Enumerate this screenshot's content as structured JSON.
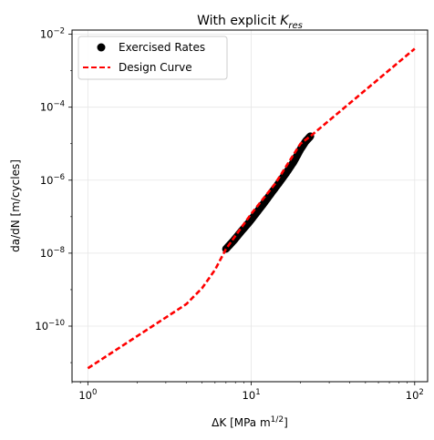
{
  "chart_data": {
    "type": "scatter",
    "title": "With explicit K_res",
    "title_parts": {
      "main": "With explicit ",
      "symbol": "K",
      "subscript": "res"
    },
    "xlabel": "ΔK [MPa m^1/2]",
    "xlabel_parts": {
      "main": "ΔK [MPa m",
      "sup": "1/2",
      "end": "]"
    },
    "ylabel": "da/dN [m/cycles]",
    "xscale": "log",
    "yscale": "log",
    "xlim": [
      0.8,
      120
    ],
    "ylim": [
      3e-12,
      0.013
    ],
    "grid": true,
    "legend_position": "top-left",
    "x_ticks": [
      {
        "base": "10",
        "exp": "0",
        "value": 1
      },
      {
        "base": "10",
        "exp": "1",
        "value": 10
      },
      {
        "base": "10",
        "exp": "2",
        "value": 100
      }
    ],
    "y_ticks": [
      {
        "base": "10",
        "exp": "−10",
        "value": 1e-10
      },
      {
        "base": "10",
        "exp": "−8",
        "value": 1e-08
      },
      {
        "base": "10",
        "exp": "−6",
        "value": 1e-06
      },
      {
        "base": "10",
        "exp": "−4",
        "value": 0.0001
      },
      {
        "base": "10",
        "exp": "−2",
        "value": 0.01
      }
    ],
    "series": [
      {
        "name": "Exercised Rates",
        "kind": "scatter",
        "color": "#000000",
        "x_range": [
          7.0,
          23.0
        ],
        "points": [
          [
            7.0,
            1.3e-08
          ],
          [
            7.8,
            2.2e-08
          ],
          [
            8.7,
            4e-08
          ],
          [
            9.7,
            7e-08
          ],
          [
            10.8,
            1.3e-07
          ],
          [
            12,
            2.4e-07
          ],
          [
            13.3,
            4.5e-07
          ],
          [
            14.8,
            8.5e-07
          ],
          [
            16.4,
            1.6e-06
          ],
          [
            18.2,
            3.2e-06
          ],
          [
            20.0,
            7e-06
          ],
          [
            21.5,
            1.15e-05
          ],
          [
            23.0,
            1.6e-05
          ]
        ]
      },
      {
        "name": "Design Curve",
        "kind": "line",
        "color": "#ff0000",
        "dashed": true,
        "points": [
          [
            1,
            7e-12
          ],
          [
            4,
            4e-10
          ],
          [
            5,
            1.1e-09
          ],
          [
            6,
            3.5e-09
          ],
          [
            7,
            1.3e-08
          ],
          [
            10,
            1.2e-07
          ],
          [
            14,
            8e-07
          ],
          [
            20,
            1e-05
          ],
          [
            23,
            1.6e-05
          ],
          [
            100,
            0.004
          ]
        ]
      }
    ]
  }
}
